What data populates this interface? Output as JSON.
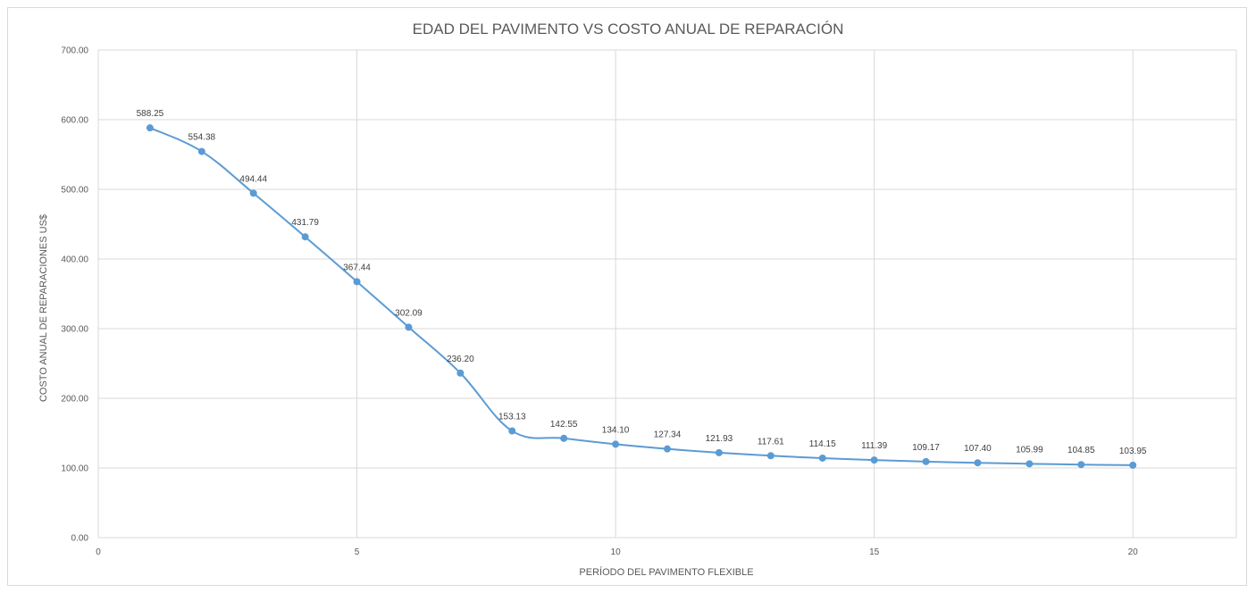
{
  "chart_data": {
    "type": "line",
    "title": "EDAD DEL PAVIMENTO VS COSTO ANUAL DE REPARACIÓN",
    "xlabel": "PERÍODO DEL PAVIMENTO FLEXIBLE",
    "ylabel": "COSTO ANUAL DE REPARACIONES US$",
    "xlim": [
      0,
      22
    ],
    "ylim": [
      0,
      700
    ],
    "x_ticks": [
      0,
      5,
      10,
      15,
      20
    ],
    "x_tick_labels": [
      "0",
      "5",
      "10",
      "15",
      "20"
    ],
    "y_ticks": [
      0,
      100,
      200,
      300,
      400,
      500,
      600,
      700
    ],
    "y_tick_labels": [
      "0.00",
      "100.00",
      "200.00",
      "300.00",
      "400.00",
      "500.00",
      "600.00",
      "700.00"
    ],
    "grid": true,
    "smooth": true,
    "series_color": "#5b9bd5",
    "series": [
      {
        "x": [
          1,
          2,
          3,
          4,
          5,
          6,
          7,
          8,
          9,
          10,
          11,
          12,
          13,
          14,
          15,
          16,
          17,
          18,
          19,
          20
        ],
        "y": [
          588.25,
          554.38,
          494.44,
          431.79,
          367.44,
          302.09,
          236.2,
          153.13,
          142.55,
          134.1,
          127.34,
          121.93,
          117.61,
          114.15,
          111.39,
          109.17,
          107.4,
          105.99,
          104.85,
          103.95
        ],
        "labels": [
          "588.25",
          "554.38",
          "494.44",
          "431.79",
          "367.44",
          "302.09",
          "236.20",
          "153.13",
          "142.55",
          "134.10",
          "127.34",
          "121.93",
          "117.61",
          "114.15",
          "111.39",
          "109.17",
          "107.40",
          "105.99",
          "104.85",
          "103.95"
        ]
      }
    ]
  }
}
